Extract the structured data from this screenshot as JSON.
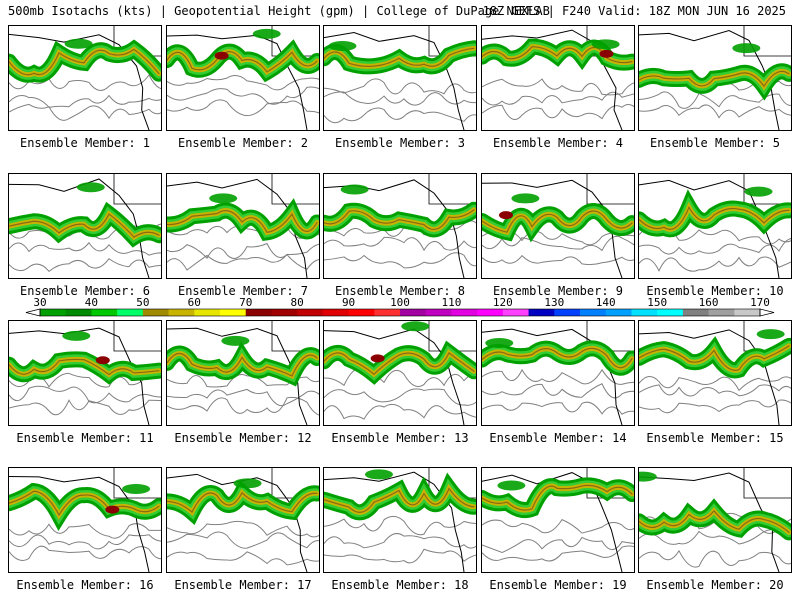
{
  "header": {
    "left_text": "500mb Isotachs (kts) | Geopotential Height (gpm) | College of DuPage NEXLAB",
    "right_text": "18Z GEFS | F240 Valid: 18Z MON JUN 16 2025"
  },
  "member_label_prefix": "Ensemble Member:",
  "members": [
    "1",
    "2",
    "3",
    "4",
    "5",
    "6",
    "7",
    "8",
    "9",
    "10",
    "11",
    "12",
    "13",
    "14",
    "15",
    "16",
    "17",
    "18",
    "19",
    "20"
  ],
  "colorbar": {
    "tick_labels": [
      "30",
      "40",
      "50",
      "60",
      "70",
      "80",
      "90",
      "100",
      "110",
      "120",
      "130",
      "140",
      "150",
      "160",
      "170"
    ],
    "colors": [
      "#00a000",
      "#008a00",
      "#00c800",
      "#00ff66",
      "#a08a00",
      "#c8b400",
      "#e6e600",
      "#ffff00",
      "#8b0000",
      "#a00000",
      "#c00000",
      "#e00000",
      "#ff0000",
      "#ff3030",
      "#a000a0",
      "#c000c0",
      "#e000e0",
      "#ff00ff",
      "#ff40ff",
      "#0000c0",
      "#0040ff",
      "#0080ff",
      "#00a0ff",
      "#00e0ff",
      "#00ffff",
      "#808080",
      "#a0a0a0",
      "#c8c8c8"
    ]
  },
  "colors": {
    "jet_green": "#00a000",
    "jet_light_green": "#33cc33",
    "jet_yellow": "#c8b400",
    "jet_brown": "#8b6914",
    "jet_core_red": "#8b0000",
    "height_contour": "#808080",
    "coastline": "#000000"
  }
}
